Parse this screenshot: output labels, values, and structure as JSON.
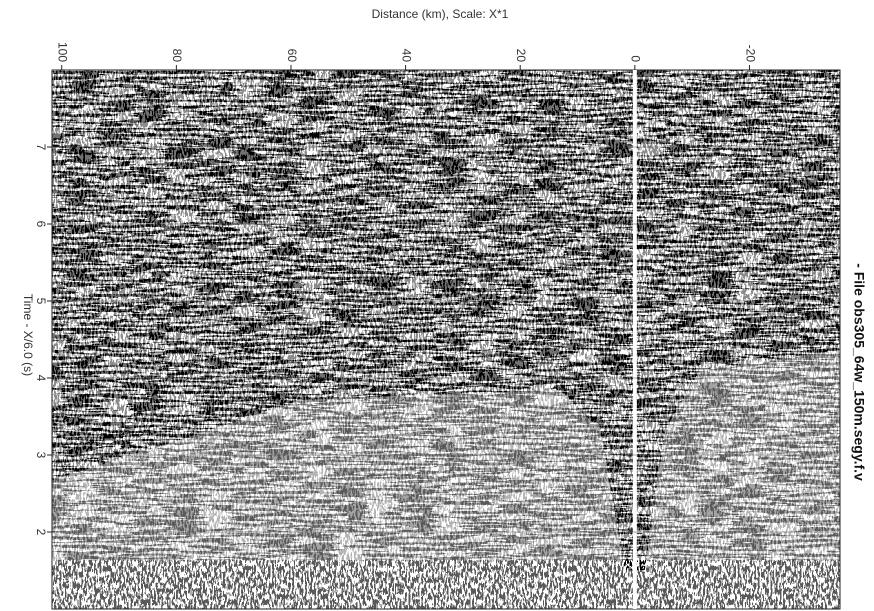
{
  "chart_data": {
    "type": "seismic",
    "title": "Distance (km), Scale: X*1",
    "y_label": "Time - X/6.0 (s)",
    "annotation": "- File  obs305_64w_150m.segy.f.v",
    "xlim": [
      101.7,
      -35.8
    ],
    "xticks": [
      100,
      80,
      60,
      40,
      20,
      0,
      -20
    ],
    "ylim": [
      1,
      8
    ],
    "yticks": [
      2,
      3,
      4,
      5,
      6,
      7
    ],
    "grid": true
  }
}
